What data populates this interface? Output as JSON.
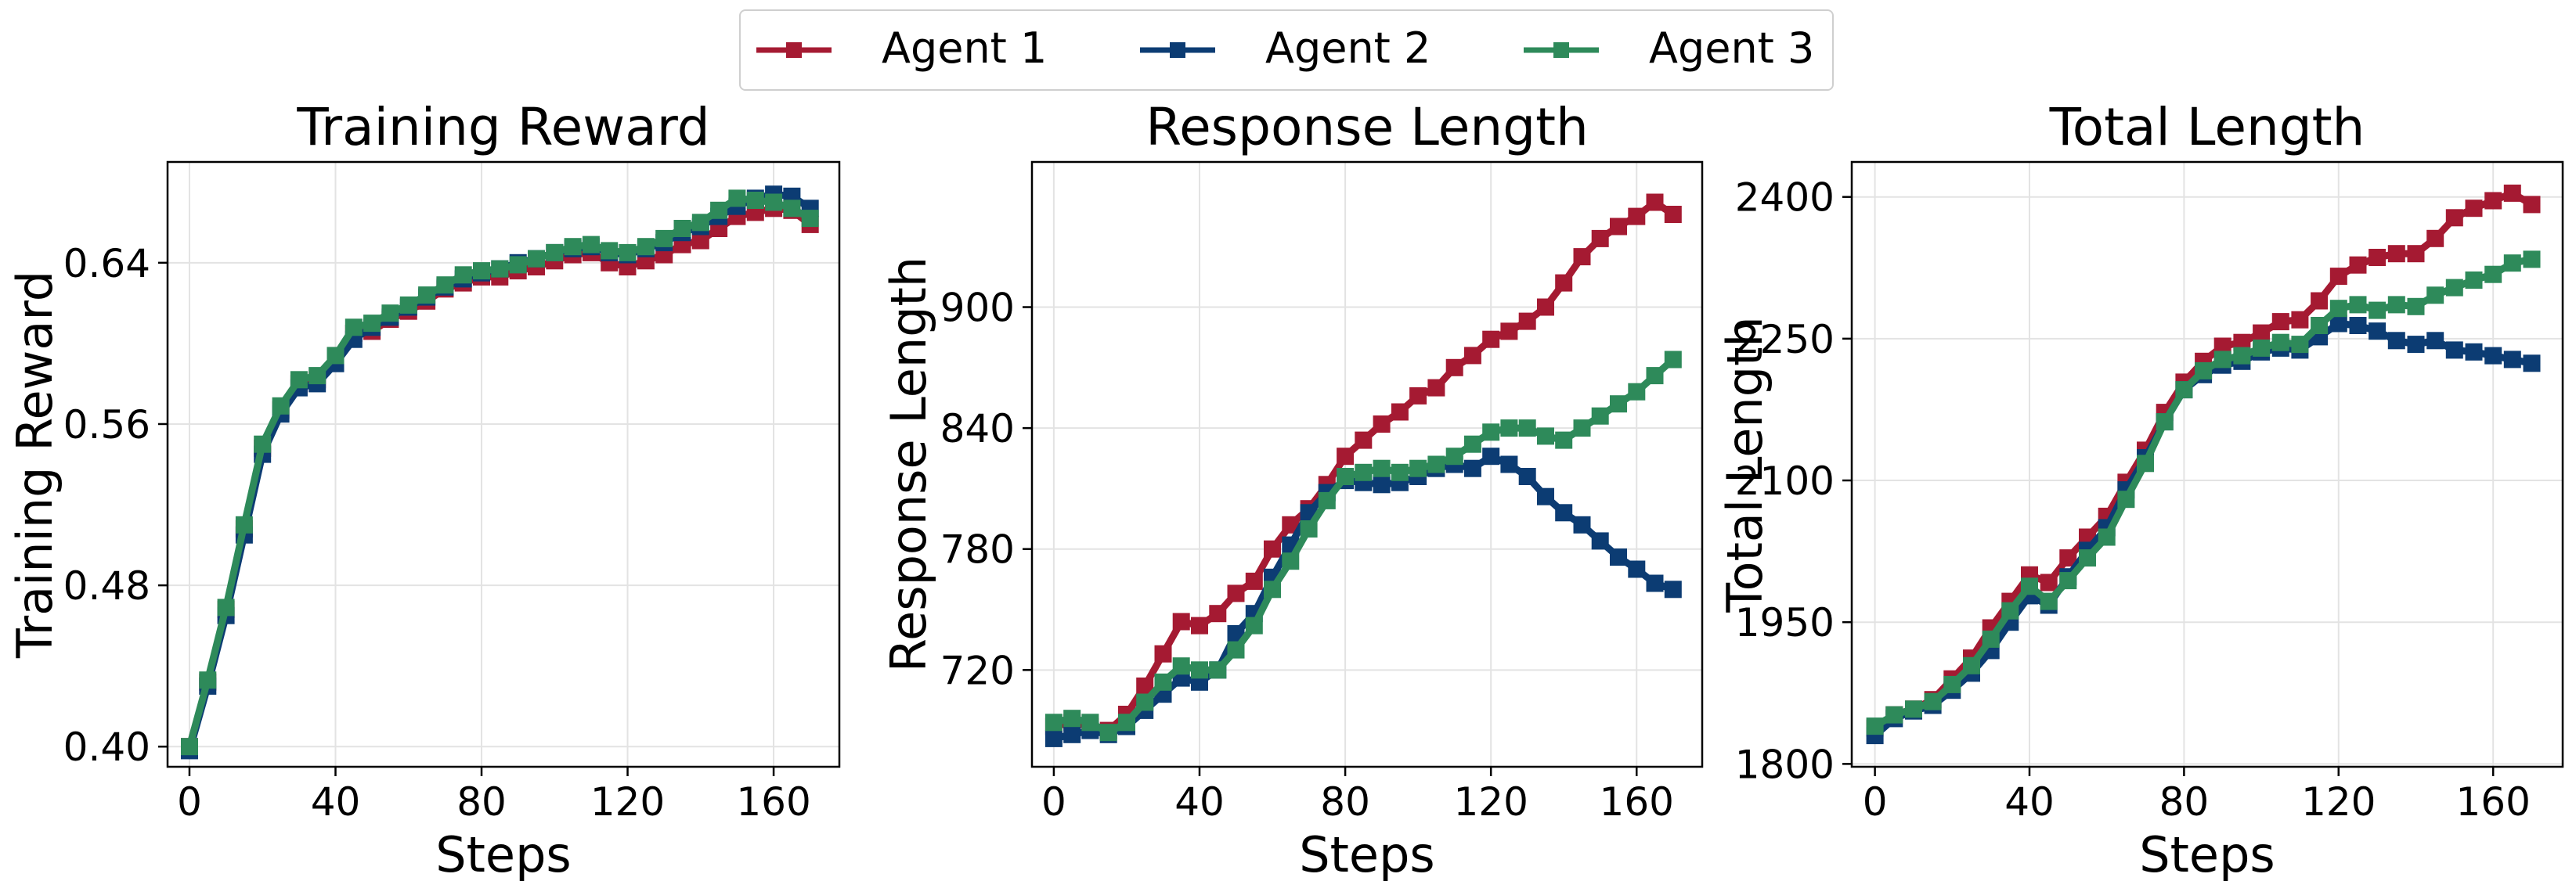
{
  "legend": {
    "entries": [
      {
        "name": "Agent 1",
        "color": "#a51a32"
      },
      {
        "name": "Agent 2",
        "color": "#0c3c73"
      },
      {
        "name": "Agent 3",
        "color": "#2e8a5a"
      }
    ],
    "marker": "square"
  },
  "chart_data": [
    {
      "type": "line",
      "title": "Training Reward",
      "xlabel": "Steps",
      "ylabel": "Training Reward",
      "xlim": [
        -6,
        178
      ],
      "ylim": [
        0.39,
        0.69
      ],
      "xticks": [
        0,
        40,
        80,
        120,
        160
      ],
      "yticks": [
        0.4,
        0.48,
        0.56,
        0.64
      ],
      "ytick_labels": [
        "0.40",
        "0.48",
        "0.56",
        "0.64"
      ],
      "grid": true,
      "x": [
        0,
        5,
        10,
        15,
        20,
        25,
        30,
        35,
        40,
        45,
        50,
        55,
        60,
        65,
        70,
        75,
        80,
        85,
        90,
        95,
        100,
        105,
        110,
        115,
        120,
        125,
        130,
        135,
        140,
        145,
        150,
        155,
        160,
        165,
        170
      ],
      "series": [
        {
          "name": "Agent 1",
          "color": "#a51a32",
          "values": [
            0.4,
            0.432,
            0.468,
            0.508,
            0.548,
            0.567,
            0.58,
            0.582,
            0.592,
            0.605,
            0.606,
            0.612,
            0.616,
            0.621,
            0.627,
            0.63,
            0.633,
            0.633,
            0.636,
            0.638,
            0.641,
            0.644,
            0.645,
            0.64,
            0.638,
            0.641,
            0.644,
            0.649,
            0.651,
            0.657,
            0.663,
            0.665,
            0.667,
            0.666,
            0.659
          ]
        },
        {
          "name": "Agent 2",
          "color": "#0c3c73",
          "values": [
            0.398,
            0.43,
            0.465,
            0.505,
            0.545,
            0.565,
            0.578,
            0.58,
            0.59,
            0.602,
            0.608,
            0.613,
            0.618,
            0.623,
            0.628,
            0.632,
            0.635,
            0.637,
            0.64,
            0.642,
            0.645,
            0.647,
            0.648,
            0.645,
            0.644,
            0.647,
            0.65,
            0.655,
            0.658,
            0.663,
            0.668,
            0.672,
            0.674,
            0.673,
            0.667
          ]
        },
        {
          "name": "Agent 3",
          "color": "#2e8a5a",
          "values": [
            0.4,
            0.433,
            0.469,
            0.51,
            0.55,
            0.569,
            0.582,
            0.584,
            0.594,
            0.608,
            0.61,
            0.615,
            0.619,
            0.624,
            0.629,
            0.634,
            0.636,
            0.637,
            0.639,
            0.642,
            0.645,
            0.648,
            0.649,
            0.646,
            0.645,
            0.648,
            0.652,
            0.657,
            0.66,
            0.666,
            0.672,
            0.671,
            0.67,
            0.667,
            0.662
          ]
        }
      ]
    },
    {
      "type": "line",
      "title": "Response Length",
      "xlabel": "Steps",
      "ylabel": "Response Length",
      "xlim": [
        -6,
        178
      ],
      "ylim": [
        672,
        972
      ],
      "xticks": [
        0,
        40,
        80,
        120,
        160
      ],
      "yticks": [
        720,
        780,
        840,
        900
      ],
      "ytick_labels": [
        "720",
        "780",
        "840",
        "900"
      ],
      "grid": true,
      "x": [
        0,
        5,
        10,
        15,
        20,
        25,
        30,
        35,
        40,
        45,
        50,
        55,
        60,
        65,
        70,
        75,
        80,
        85,
        90,
        95,
        100,
        105,
        110,
        115,
        120,
        125,
        130,
        135,
        140,
        145,
        150,
        155,
        160,
        165,
        170
      ],
      "series": [
        {
          "name": "Agent 1",
          "color": "#a51a32",
          "values": [
            692,
            694,
            692,
            690,
            698,
            712,
            728,
            744,
            742,
            748,
            758,
            764,
            780,
            792,
            800,
            812,
            826,
            834,
            842,
            848,
            856,
            860,
            870,
            876,
            884,
            888,
            893,
            900,
            912,
            925,
            934,
            940,
            945,
            952,
            946
          ]
        },
        {
          "name": "Agent 2",
          "color": "#0c3c73",
          "values": [
            686,
            688,
            690,
            688,
            692,
            700,
            708,
            716,
            714,
            720,
            738,
            748,
            766,
            782,
            798,
            808,
            814,
            813,
            812,
            813,
            816,
            820,
            822,
            820,
            826,
            822,
            816,
            806,
            798,
            792,
            784,
            776,
            770,
            763,
            760
          ]
        },
        {
          "name": "Agent 3",
          "color": "#2e8a5a",
          "values": [
            694,
            696,
            694,
            689,
            694,
            704,
            714,
            722,
            720,
            720,
            730,
            742,
            760,
            774,
            790,
            804,
            816,
            818,
            820,
            818,
            820,
            822,
            826,
            832,
            838,
            840,
            840,
            836,
            834,
            840,
            846,
            852,
            858,
            866,
            874
          ]
        }
      ]
    },
    {
      "type": "line",
      "title": "Total Length",
      "xlabel": "Steps",
      "ylabel": "Total Length",
      "xlim": [
        -6,
        178
      ],
      "ylim": [
        1797,
        2437
      ],
      "xticks": [
        0,
        40,
        80,
        120,
        160
      ],
      "yticks": [
        1800,
        1950,
        2100,
        2250,
        2400
      ],
      "ytick_labels": [
        "1800",
        "1950",
        "2100",
        "2250",
        "2400"
      ],
      "grid": true,
      "x": [
        0,
        5,
        10,
        15,
        20,
        25,
        30,
        35,
        40,
        45,
        50,
        55,
        60,
        65,
        70,
        75,
        80,
        85,
        90,
        95,
        100,
        105,
        110,
        115,
        120,
        125,
        130,
        135,
        140,
        145,
        150,
        155,
        160,
        165,
        170
      ],
      "series": [
        {
          "name": "Agent 1",
          "color": "#a51a32",
          "values": [
            1838,
            1852,
            1858,
            1868,
            1890,
            1912,
            1944,
            1972,
            2000,
            1992,
            2018,
            2040,
            2062,
            2098,
            2132,
            2172,
            2204,
            2226,
            2242,
            2246,
            2256,
            2268,
            2270,
            2290,
            2316,
            2328,
            2336,
            2340,
            2340,
            2356,
            2378,
            2388,
            2396,
            2404,
            2392
          ]
        },
        {
          "name": "Agent 2",
          "color": "#0c3c73",
          "values": [
            1830,
            1848,
            1856,
            1862,
            1878,
            1896,
            1920,
            1950,
            1978,
            1968,
            1998,
            2026,
            2050,
            2090,
            2124,
            2162,
            2196,
            2212,
            2222,
            2226,
            2236,
            2240,
            2238,
            2252,
            2266,
            2264,
            2258,
            2248,
            2244,
            2248,
            2238,
            2236,
            2232,
            2228,
            2224
          ]
        },
        {
          "name": "Agent 3",
          "color": "#2e8a5a",
          "values": [
            1840,
            1852,
            1858,
            1866,
            1884,
            1904,
            1932,
            1962,
            1988,
            1972,
            1994,
            2018,
            2040,
            2080,
            2118,
            2162,
            2196,
            2216,
            2228,
            2232,
            2240,
            2246,
            2244,
            2264,
            2282,
            2286,
            2280,
            2286,
            2284,
            2296,
            2304,
            2312,
            2318,
            2330,
            2334
          ]
        }
      ]
    }
  ]
}
